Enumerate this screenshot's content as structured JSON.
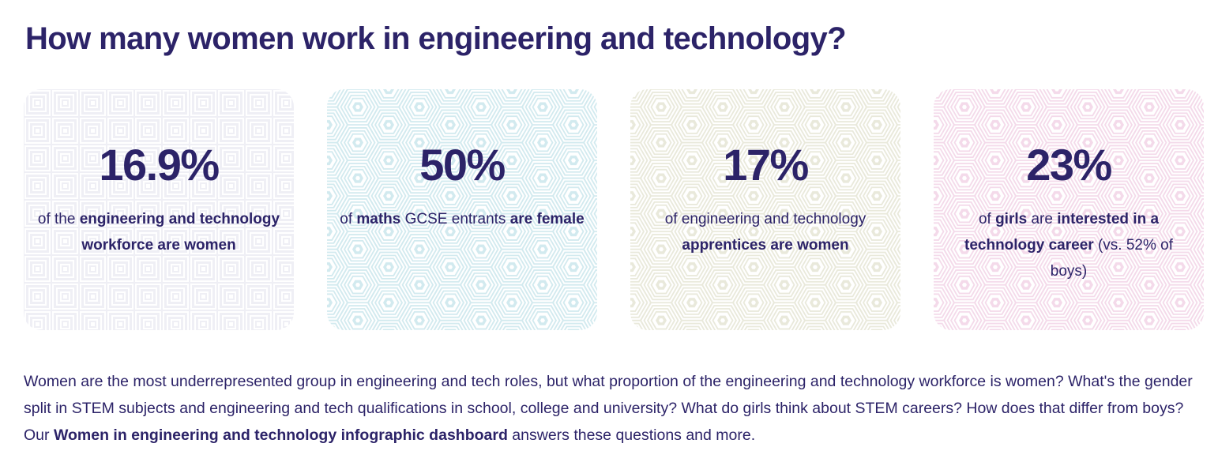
{
  "header": {
    "title": "How many women work in engineering and technology?"
  },
  "theme": {
    "text_color": "#2c2368",
    "background_color": "#ffffff"
  },
  "stats": [
    {
      "value": "16.9%",
      "description": [
        {
          "text": "of the ",
          "bold": false
        },
        {
          "text": "engineering and technology workforce are women",
          "bold": true
        }
      ],
      "pattern": "squares",
      "pattern_color": "#efeff5"
    },
    {
      "value": "50%",
      "description": [
        {
          "text": "of ",
          "bold": false
        },
        {
          "text": "maths",
          "bold": true
        },
        {
          "text": " GCSE entrants ",
          "bold": false
        },
        {
          "text": "are female",
          "bold": true
        }
      ],
      "pattern": "hex",
      "pattern_color": "#d2eaef"
    },
    {
      "value": "17%",
      "description": [
        {
          "text": "of engineering and technology ",
          "bold": false
        },
        {
          "text": "apprentices are women",
          "bold": true
        }
      ],
      "pattern": "hex",
      "pattern_color": "#e9e9db"
    },
    {
      "value": "23%",
      "description": [
        {
          "text": "of ",
          "bold": false
        },
        {
          "text": "girls",
          "bold": true
        },
        {
          "text": " are ",
          "bold": false
        },
        {
          "text": "interested in a technology career",
          "bold": true
        },
        {
          "text": " (vs. 52% of boys)",
          "bold": false
        }
      ],
      "pattern": "hex",
      "pattern_color": "#f4daea"
    }
  ],
  "paragraph": {
    "segments": [
      {
        "text": "Women are the most underrepresented group in engineering and tech roles, but what proportion of the engineering and technology workforce is women? What's the gender split in STEM subjects and engineering and tech qualifications in school, college and university? What do girls think about STEM careers? How does that differ from boys? Our ",
        "bold": false
      },
      {
        "text": "Women in engineering and technology infographic dashboard",
        "bold": true,
        "link": true
      },
      {
        "text": " answers these questions and more.",
        "bold": false
      }
    ]
  }
}
